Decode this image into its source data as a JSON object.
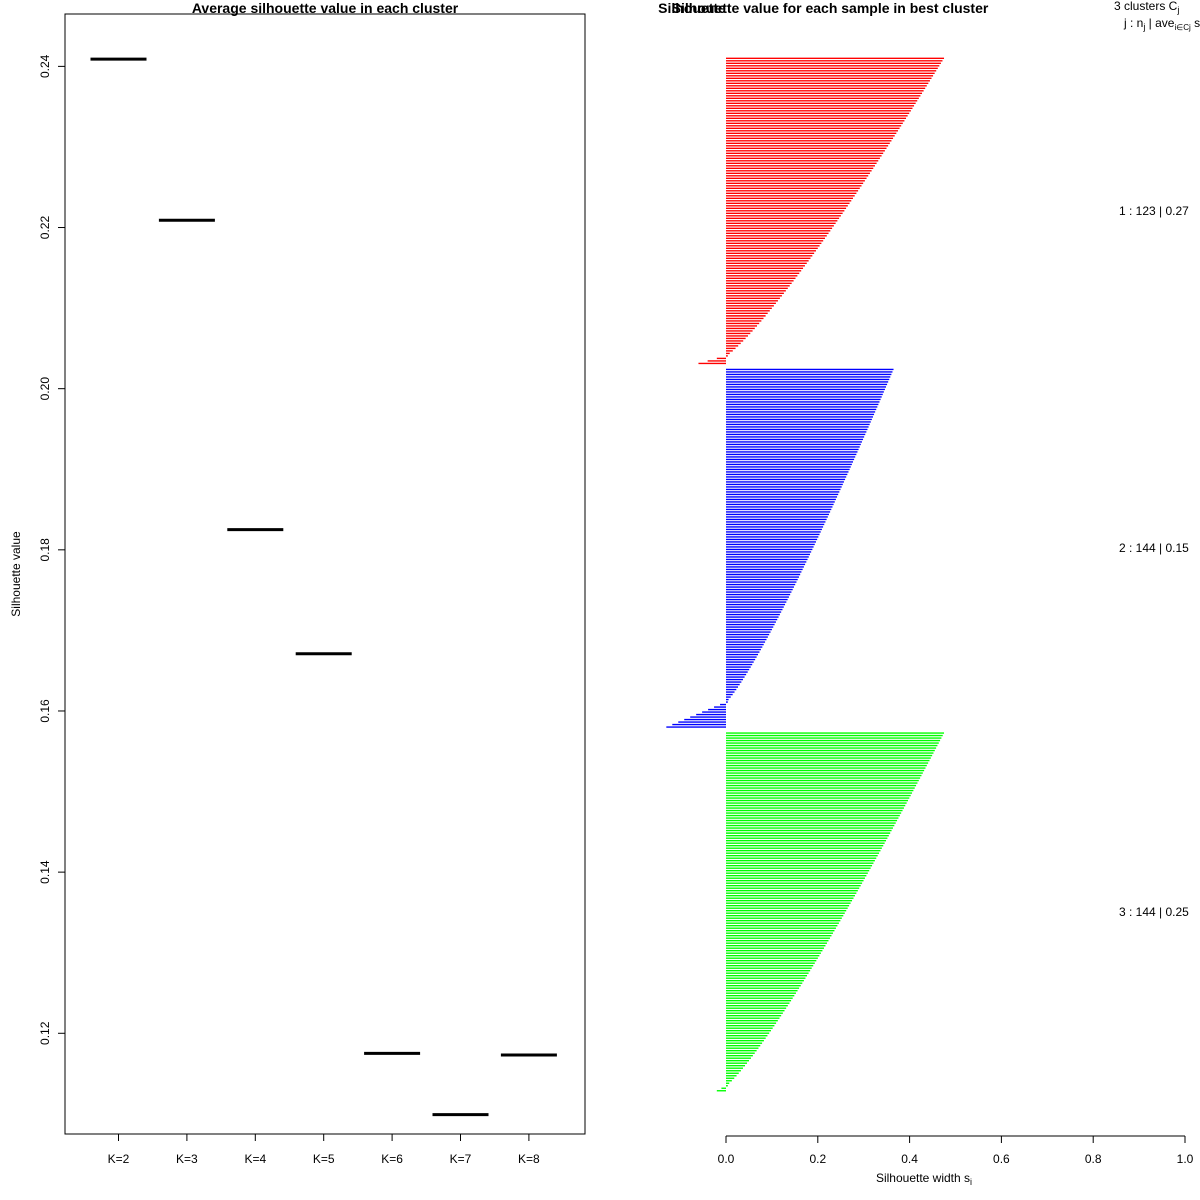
{
  "chart_data": [
    {
      "type": "line",
      "title": "Average silhouette value in each cluster",
      "xlabel": "",
      "ylabel": "Silhouette value",
      "categories": [
        "K=2",
        "K=3",
        "K=4",
        "K=5",
        "K=6",
        "K=7",
        "K=8"
      ],
      "values": [
        0.2409,
        0.2209,
        0.1825,
        0.1671,
        0.1175,
        0.1099,
        0.1173
      ],
      "yticks": [
        "0.12",
        "0.14",
        "0.16",
        "0.18",
        "0.20",
        "0.22",
        "0.24"
      ],
      "ytick_values": [
        0.12,
        0.14,
        0.16,
        0.18,
        0.2,
        0.22,
        0.24
      ],
      "ylim": [
        0.1075,
        0.2465
      ],
      "color": "#000000"
    },
    {
      "type": "bar",
      "title": "Silhouette value for each sample in best cluster",
      "overlap_title": "Silhouette",
      "xlabel": "Silhouette width s",
      "xlabel_sub": "i",
      "xticks": [
        "0.0",
        "0.2",
        "0.4",
        "0.6",
        "0.8",
        "1.0"
      ],
      "xtick_values": [
        0,
        0.2,
        0.4,
        0.6,
        0.8,
        1.0
      ],
      "xlim": [
        0,
        1
      ],
      "legend_header": {
        "clusters_text": "3  clusters  C",
        "clusters_sub": "j",
        "cols_text": "j :  n",
        "cols_sub1": "j",
        "cols_mid": " | ave",
        "cols_sub2": "i∈Cj",
        "cols_tail": "  s"
      },
      "series": [
        {
          "name": "1",
          "n": 123,
          "label": "1 :   123  |  0.27",
          "color": "#ff0000",
          "max": 0.475,
          "min": -0.06,
          "negatives": 3
        },
        {
          "name": "2",
          "n": 144,
          "label": "2 :   144  |  0.15",
          "color": "#0000ff",
          "max": 0.365,
          "min": -0.13,
          "negatives": 10
        },
        {
          "name": "3",
          "n": 144,
          "label": "3 :   144  |  0.25",
          "color": "#00ff00",
          "max": 0.475,
          "min": -0.02,
          "negatives": 2
        }
      ]
    }
  ]
}
